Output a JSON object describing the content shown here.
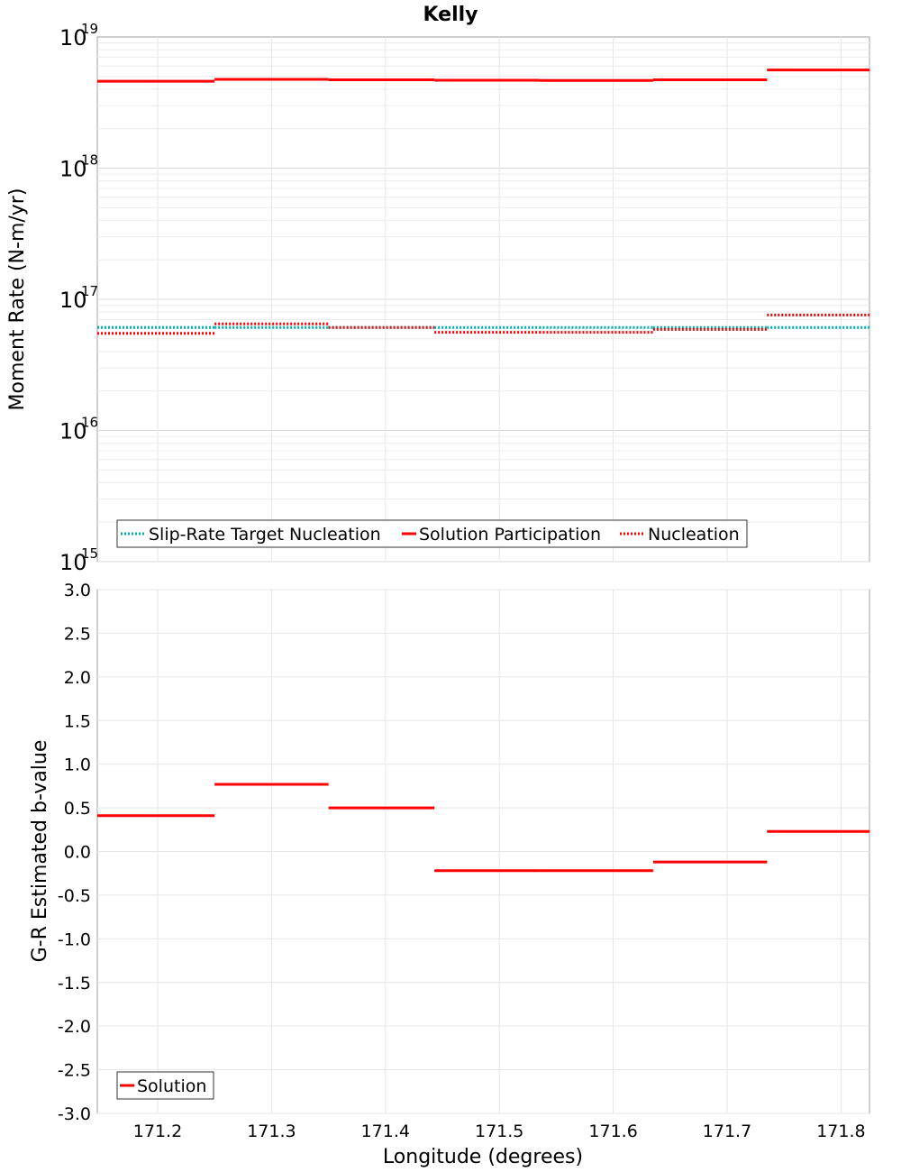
{
  "chart_data": [
    {
      "type": "line",
      "scale": "log",
      "title": "Kelly",
      "xlabel": "Longitude (degrees)",
      "ylabel": "Moment Rate (N-m/yr)",
      "xlim": [
        171.147,
        171.825
      ],
      "ylim_exponents": [
        15,
        19
      ],
      "ytick_exponents": [
        15,
        16,
        17,
        18,
        19
      ],
      "ytick_base": "10",
      "grid": true,
      "legend_position": "bottom-left",
      "bin_edges": [
        171.147,
        171.25,
        171.35,
        171.443,
        171.535,
        171.635,
        171.735,
        171.825
      ],
      "series": [
        {
          "name": "Slip-Rate Target Nucleation",
          "style": "dotted",
          "color": "#00b0b0",
          "values": [
            6.1e+16,
            6.1e+16,
            6.1e+16,
            6.1e+16,
            6.1e+16,
            6.1e+16,
            6.1e+16
          ]
        },
        {
          "name": "Solution Participation",
          "style": "solid",
          "color": "#ff0000",
          "values": [
            4.6e+18,
            4.75e+18,
            4.72e+18,
            4.68e+18,
            4.66e+18,
            4.72e+18,
            5.6e+18
          ]
        },
        {
          "name": "Nucleation",
          "style": "dotted",
          "color": "#ff0000",
          "values": [
            5.5e+16,
            6.5e+16,
            6.1e+16,
            5.6e+16,
            5.6e+16,
            5.9e+16,
            7.6e+16
          ]
        }
      ]
    },
    {
      "type": "line",
      "scale": "linear",
      "xlabel": "Longitude (degrees)",
      "ylabel": "G-R Estimated b-value",
      "xlim": [
        171.147,
        171.825
      ],
      "ylim": [
        -3.0,
        3.0
      ],
      "yticks": [
        "3.0",
        "2.5",
        "2.0",
        "1.5",
        "1.0",
        "0.5",
        "0.0",
        "-0.5",
        "-1.0",
        "-1.5",
        "-2.0",
        "-2.5",
        "-3.0"
      ],
      "xticks": [
        "171.2",
        "171.3",
        "171.4",
        "171.5",
        "171.6",
        "171.7",
        "171.8"
      ],
      "grid": true,
      "legend_position": "bottom-left",
      "bin_edges": [
        171.147,
        171.25,
        171.35,
        171.443,
        171.535,
        171.635,
        171.735,
        171.825
      ],
      "series": [
        {
          "name": "Solution",
          "style": "solid",
          "color": "#ff0000",
          "values": [
            0.41,
            0.77,
            0.5,
            -0.22,
            -0.22,
            -0.12,
            0.23
          ]
        }
      ]
    }
  ]
}
